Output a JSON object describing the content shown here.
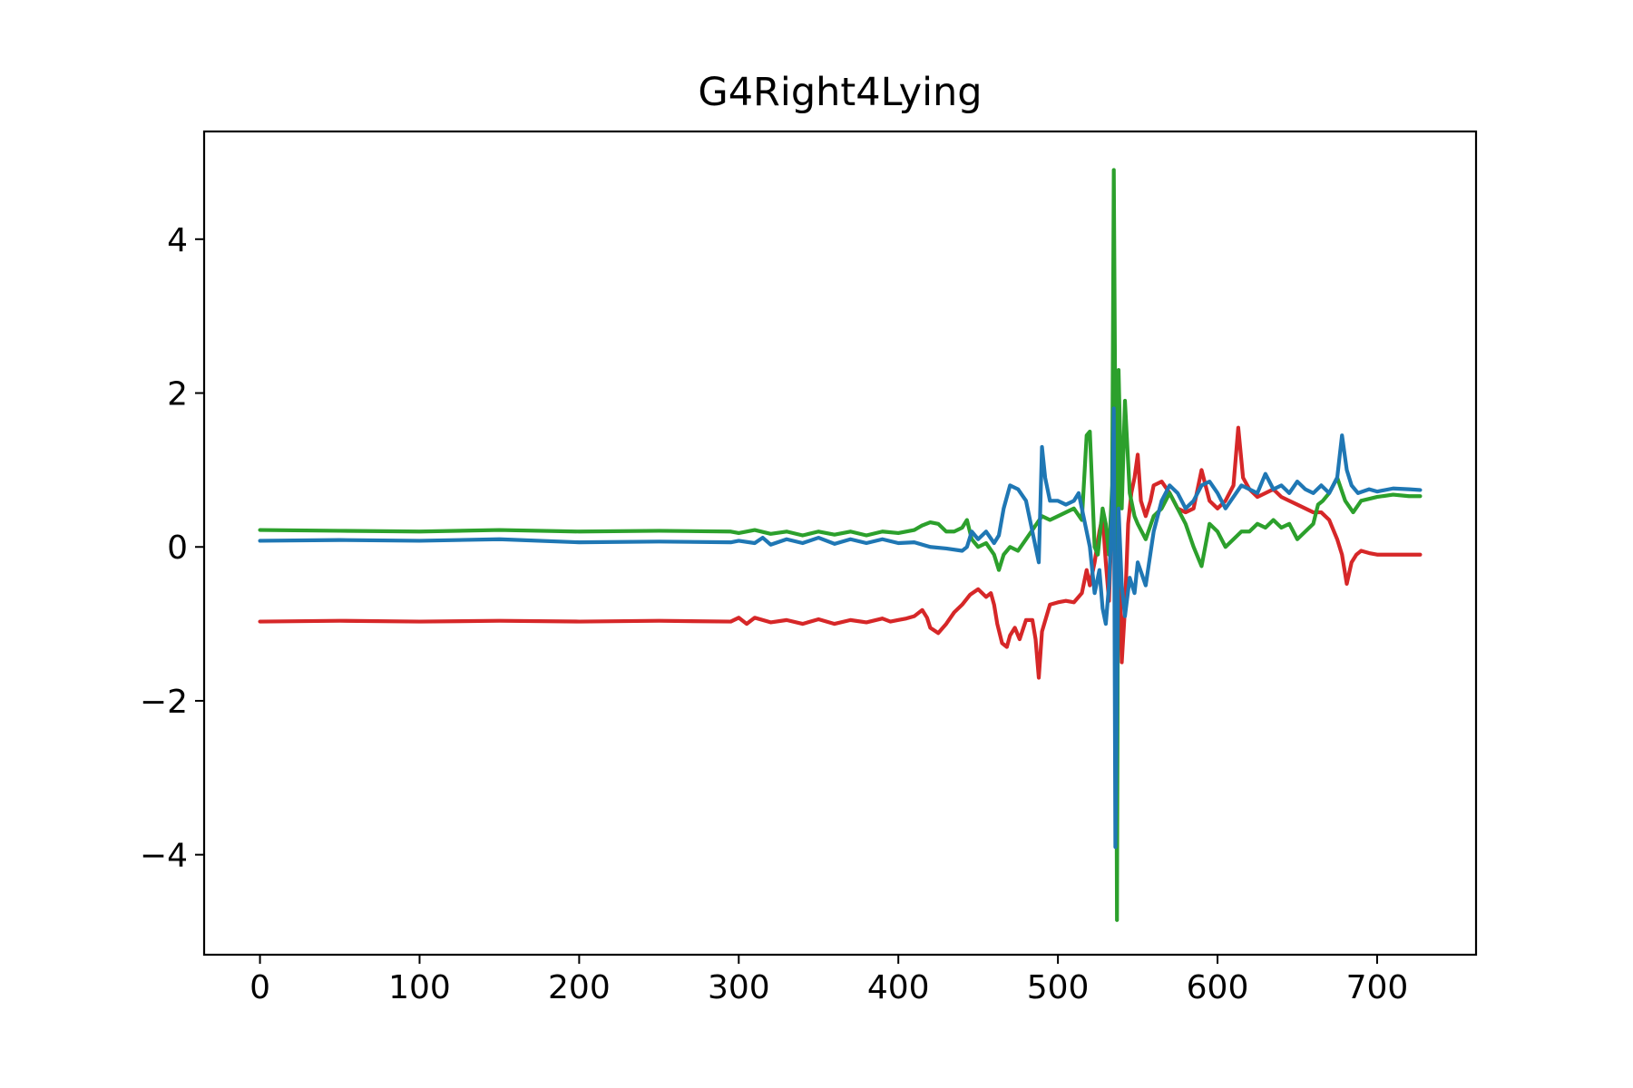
{
  "chart_data": {
    "type": "line",
    "title": "G4Right4Lying",
    "xlabel": "",
    "ylabel": "",
    "xlim": [
      -35,
      762
    ],
    "ylim": [
      -5.3,
      5.4
    ],
    "grid": false,
    "legend": "none",
    "x_ticks": [
      0,
      100,
      200,
      300,
      400,
      500,
      600,
      700
    ],
    "x_tick_labels": [
      "0",
      "100",
      "200",
      "300",
      "400",
      "500",
      "600",
      "700"
    ],
    "y_ticks": [
      -4,
      -2,
      0,
      2,
      4
    ],
    "y_tick_labels": [
      "−4",
      "−2",
      "0",
      "2",
      "4"
    ],
    "series": [
      {
        "color": "#d62728",
        "x": [
          0,
          50,
          100,
          150,
          200,
          250,
          295,
          300,
          305,
          310,
          320,
          330,
          340,
          350,
          360,
          370,
          380,
          390,
          395,
          400,
          405,
          410,
          415,
          418,
          420,
          425,
          430,
          435,
          440,
          445,
          450,
          455,
          458,
          460,
          462,
          465,
          468,
          470,
          473,
          476,
          480,
          484,
          486,
          488,
          490,
          495,
          500,
          505,
          510,
          515,
          518,
          520,
          523,
          526,
          528,
          530,
          532,
          534,
          535,
          536,
          538,
          540,
          542,
          544,
          546,
          548,
          550,
          552,
          555,
          558,
          560,
          565,
          570,
          575,
          580,
          585,
          590,
          595,
          600,
          605,
          610,
          613,
          616,
          620,
          625,
          630,
          635,
          640,
          645,
          650,
          655,
          660,
          665,
          670,
          675,
          678,
          681,
          684,
          687,
          690,
          695,
          700,
          710,
          720,
          727
        ],
        "y": [
          -0.97,
          -0.96,
          -0.97,
          -0.96,
          -0.97,
          -0.96,
          -0.97,
          -0.92,
          -1.0,
          -0.92,
          -0.98,
          -0.95,
          -1.0,
          -0.94,
          -1.0,
          -0.95,
          -0.98,
          -0.93,
          -0.97,
          -0.95,
          -0.93,
          -0.9,
          -0.82,
          -0.92,
          -1.05,
          -1.12,
          -1.0,
          -0.85,
          -0.75,
          -0.62,
          -0.55,
          -0.65,
          -0.6,
          -0.75,
          -1.0,
          -1.25,
          -1.3,
          -1.15,
          -1.05,
          -1.2,
          -0.95,
          -0.95,
          -1.2,
          -1.7,
          -1.1,
          -0.75,
          -0.72,
          -0.7,
          -0.72,
          -0.6,
          -0.3,
          -0.5,
          -0.2,
          0.2,
          0.4,
          -0.2,
          -0.7,
          0.5,
          3.3,
          1.5,
          0.2,
          -1.5,
          -0.8,
          0.3,
          0.7,
          0.9,
          1.2,
          0.6,
          0.4,
          0.6,
          0.8,
          0.85,
          0.7,
          0.5,
          0.45,
          0.5,
          1.0,
          0.6,
          0.5,
          0.6,
          0.8,
          1.55,
          0.9,
          0.75,
          0.65,
          0.7,
          0.75,
          0.65,
          0.6,
          0.55,
          0.5,
          0.45,
          0.45,
          0.35,
          0.1,
          -0.1,
          -0.48,
          -0.2,
          -0.1,
          -0.05,
          -0.08,
          -0.1,
          -0.1,
          -0.1,
          -0.1
        ]
      },
      {
        "color": "#2ca02c",
        "x": [
          0,
          50,
          100,
          150,
          200,
          250,
          295,
          300,
          310,
          320,
          330,
          340,
          350,
          360,
          370,
          380,
          390,
          400,
          410,
          415,
          420,
          425,
          430,
          435,
          440,
          443,
          446,
          450,
          455,
          460,
          463,
          466,
          470,
          475,
          480,
          485,
          490,
          495,
          500,
          505,
          510,
          515,
          518,
          520,
          523,
          525,
          528,
          530,
          532,
          534,
          535,
          536,
          537,
          538,
          540,
          542,
          545,
          548,
          550,
          555,
          560,
          565,
          570,
          575,
          580,
          585,
          590,
          595,
          600,
          605,
          610,
          615,
          620,
          625,
          630,
          635,
          640,
          645,
          650,
          655,
          660,
          663,
          666,
          670,
          675,
          680,
          685,
          690,
          700,
          710,
          720,
          727
        ],
        "y": [
          0.22,
          0.21,
          0.2,
          0.22,
          0.2,
          0.21,
          0.2,
          0.18,
          0.22,
          0.17,
          0.2,
          0.15,
          0.2,
          0.16,
          0.2,
          0.15,
          0.2,
          0.18,
          0.22,
          0.28,
          0.32,
          0.3,
          0.2,
          0.2,
          0.25,
          0.35,
          0.1,
          0.0,
          0.05,
          -0.1,
          -0.3,
          -0.1,
          0.0,
          -0.05,
          0.1,
          0.25,
          0.4,
          0.35,
          0.4,
          0.45,
          0.5,
          0.35,
          1.45,
          1.5,
          0.0,
          -0.1,
          0.5,
          0.3,
          -0.1,
          0.8,
          4.9,
          1.5,
          -4.85,
          2.3,
          0.5,
          1.9,
          0.7,
          0.4,
          0.3,
          0.1,
          0.4,
          0.5,
          0.7,
          0.5,
          0.3,
          0.0,
          -0.25,
          0.3,
          0.2,
          0.0,
          0.1,
          0.2,
          0.2,
          0.3,
          0.25,
          0.35,
          0.25,
          0.3,
          0.1,
          0.2,
          0.3,
          0.55,
          0.6,
          0.7,
          0.9,
          0.6,
          0.45,
          0.6,
          0.65,
          0.68,
          0.66,
          0.66
        ]
      },
      {
        "color": "#1f77b4",
        "x": [
          0,
          50,
          100,
          150,
          200,
          250,
          295,
          300,
          310,
          315,
          320,
          330,
          340,
          350,
          360,
          370,
          380,
          390,
          400,
          410,
          420,
          430,
          440,
          443,
          446,
          450,
          455,
          460,
          463,
          466,
          470,
          475,
          480,
          485,
          488,
          490,
          492,
          495,
          500,
          505,
          510,
          513,
          516,
          520,
          523,
          526,
          528,
          530,
          532,
          534,
          535,
          536,
          537,
          538,
          540,
          542,
          545,
          548,
          550,
          555,
          560,
          565,
          570,
          575,
          580,
          585,
          590,
          595,
          600,
          605,
          610,
          615,
          620,
          625,
          630,
          635,
          640,
          645,
          650,
          655,
          660,
          665,
          670,
          675,
          678,
          681,
          684,
          688,
          695,
          700,
          710,
          720,
          727
        ],
        "y": [
          0.08,
          0.09,
          0.08,
          0.1,
          0.06,
          0.07,
          0.06,
          0.08,
          0.05,
          0.12,
          0.03,
          0.1,
          0.05,
          0.12,
          0.04,
          0.1,
          0.05,
          0.1,
          0.05,
          0.06,
          0.0,
          -0.02,
          -0.05,
          0.0,
          0.2,
          0.1,
          0.2,
          0.05,
          0.15,
          0.5,
          0.8,
          0.75,
          0.6,
          0.1,
          -0.2,
          1.3,
          0.9,
          0.6,
          0.6,
          0.55,
          0.6,
          0.7,
          0.4,
          0.0,
          -0.6,
          -0.3,
          -0.8,
          -1.0,
          -0.5,
          0.5,
          1.8,
          -3.9,
          -2.0,
          0.5,
          -0.5,
          -0.9,
          -0.4,
          -0.6,
          -0.2,
          -0.5,
          0.2,
          0.6,
          0.8,
          0.7,
          0.5,
          0.6,
          0.8,
          0.85,
          0.7,
          0.5,
          0.65,
          0.8,
          0.75,
          0.7,
          0.95,
          0.75,
          0.8,
          0.7,
          0.85,
          0.75,
          0.7,
          0.8,
          0.7,
          0.9,
          1.45,
          1.0,
          0.8,
          0.7,
          0.75,
          0.72,
          0.76,
          0.75,
          0.74
        ]
      }
    ]
  }
}
